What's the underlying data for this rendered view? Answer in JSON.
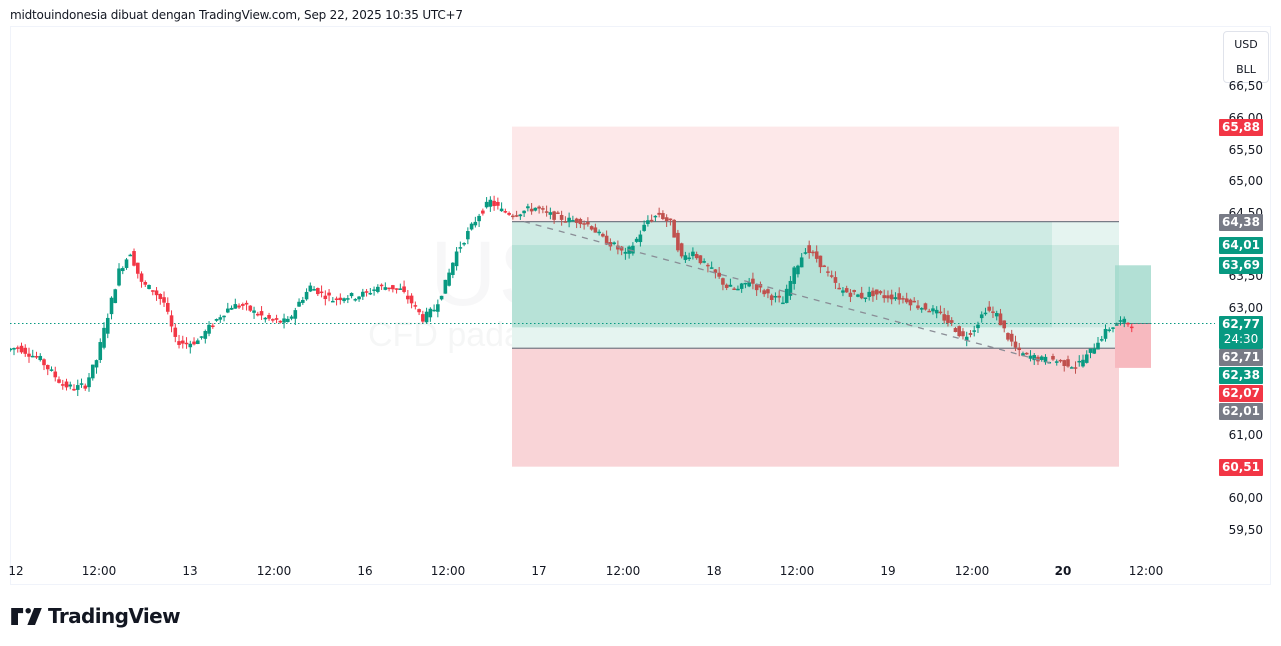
{
  "header": {
    "attribution": "midtouindonesia dibuat dengan TradingView.com, Sep 22, 2025 10:35 UTC+7"
  },
  "watermark": {
    "symbol": "USOIL, 30",
    "description": "CFD pada Minyak Mentah WTI"
  },
  "currency_button": {
    "line1": "USD",
    "line2": "BLL"
  },
  "price_axis": {
    "ticks": [
      {
        "label": "66,50",
        "value": 66.5
      },
      {
        "label": "66,00",
        "value": 66.0
      },
      {
        "label": "65,50",
        "value": 65.5
      },
      {
        "label": "65,00",
        "value": 65.0
      },
      {
        "label": "64,50",
        "value": 64.5
      },
      {
        "label": "63,50",
        "value": 63.5
      },
      {
        "label": "63,00",
        "value": 63.0
      },
      {
        "label": "61,00",
        "value": 61.0
      },
      {
        "label": "60,00",
        "value": 60.0
      },
      {
        "label": "59,50",
        "value": 59.5
      }
    ],
    "tags": [
      {
        "label": "65,88",
        "value": 65.88,
        "color": "#f23645"
      },
      {
        "label": "64,38",
        "value": 64.38,
        "color": "#787b86"
      },
      {
        "label": "64,01",
        "value": 64.01,
        "color": "#089981"
      },
      {
        "label": "63,69",
        "value": 63.69,
        "color": "#089981"
      },
      {
        "label": "62,77",
        "value": 62.77,
        "color": "#089981",
        "sub": "24:30"
      },
      {
        "label": "62,71",
        "value": 62.71,
        "color": "#787b86"
      },
      {
        "label": "62,38",
        "value": 62.38,
        "color": "#089981"
      },
      {
        "label": "62,07",
        "value": 62.07,
        "color": "#f23645"
      },
      {
        "label": "62,01",
        "value": 62.01,
        "color": "#787b86"
      },
      {
        "label": "60,51",
        "value": 60.51,
        "color": "#f23645"
      }
    ]
  },
  "time_axis": {
    "ticks": [
      {
        "label": "12",
        "x": 16,
        "bold": false
      },
      {
        "label": "12:00",
        "x": 99,
        "bold": false
      },
      {
        "label": "13",
        "x": 190,
        "bold": false
      },
      {
        "label": "12:00",
        "x": 274,
        "bold": false
      },
      {
        "label": "16",
        "x": 365,
        "bold": false
      },
      {
        "label": "12:00",
        "x": 448,
        "bold": false
      },
      {
        "label": "17",
        "x": 539,
        "bold": false
      },
      {
        "label": "12:00",
        "x": 623,
        "bold": false
      },
      {
        "label": "18",
        "x": 714,
        "bold": false
      },
      {
        "label": "12:00",
        "x": 797,
        "bold": false
      },
      {
        "label": "19",
        "x": 888,
        "bold": false
      },
      {
        "label": "12:00",
        "x": 972,
        "bold": false
      },
      {
        "label": "20",
        "x": 1063,
        "bold": true
      },
      {
        "label": "12:00",
        "x": 1146,
        "bold": false
      }
    ]
  },
  "branding": {
    "logo_text": "TradingView"
  },
  "colors": {
    "up": "#089981",
    "down": "#f23645",
    "down_in_zone": "#c0504d",
    "last_price_line": "#089981"
  },
  "chart_data": {
    "type": "candlestick",
    "title": "USOIL, 30",
    "subtitle": "CFD pada Minyak Mentah WTI",
    "interval": "30m",
    "xlabel": "",
    "ylabel": "USD/BLL",
    "ylim": [
      59.3,
      66.8
    ],
    "x_ticks": [
      "12",
      "12:00",
      "13",
      "12:00",
      "16",
      "12:00",
      "17",
      "12:00",
      "18",
      "12:00",
      "19",
      "12:00",
      "20",
      "12:00"
    ],
    "last_price": 62.77,
    "countdown": "24:30",
    "position_tool": {
      "stop_upper": 65.88,
      "entry_upper": 64.38,
      "entry_lower": 62.38,
      "target_lower": 60.51,
      "inner_upper": 64.01,
      "inner_lower": 62.71
    },
    "small_position": {
      "upper": 63.69,
      "entry": 62.77,
      "lower": 62.07
    },
    "trend_line": {
      "from": 64.38,
      "to": 62.15,
      "style": "dashed"
    },
    "approx_close_path": [
      62.4,
      62.3,
      62.2,
      62.0,
      61.8,
      61.75,
      61.8,
      62.2,
      62.9,
      63.6,
      63.9,
      63.4,
      63.3,
      63.1,
      62.5,
      62.45,
      62.5,
      62.7,
      62.9,
      63.05,
      63.05,
      62.95,
      62.85,
      62.8,
      62.8,
      63.1,
      63.35,
      63.25,
      63.15,
      63.2,
      63.2,
      63.25,
      63.35,
      63.35,
      63.3,
      63.1,
      62.85,
      63.0,
      63.4,
      63.9,
      64.2,
      64.5,
      64.7,
      64.55,
      64.5,
      64.55,
      64.6,
      64.5,
      64.45,
      64.4,
      64.4,
      64.3,
      64.1,
      64.0,
      63.85,
      64.1,
      64.4,
      64.5,
      64.35,
      63.8,
      63.9,
      63.7,
      63.55,
      63.35,
      63.3,
      63.45,
      63.3,
      63.2,
      63.1,
      63.6,
      63.95,
      63.8,
      63.55,
      63.3,
      63.25,
      63.2,
      63.25,
      63.2,
      63.2,
      63.15,
      63.05,
      63.0,
      62.9,
      62.75,
      62.55,
      62.7,
      63.0,
      62.9,
      62.55,
      62.3,
      62.25,
      62.2,
      62.2,
      62.15,
      62.1,
      62.25,
      62.5,
      62.7,
      62.8,
      62.77
    ]
  }
}
